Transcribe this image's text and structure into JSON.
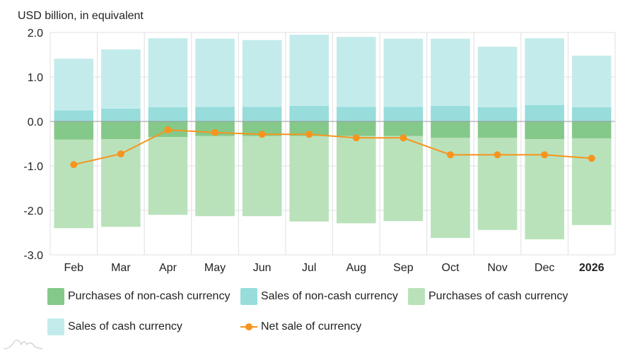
{
  "chart_data": {
    "type": "bar",
    "stacked": true,
    "ylabel": "USD billion, in equivalent",
    "ylim": [
      -3.0,
      2.0
    ],
    "yticks": [
      "2.0",
      "1.0",
      "0.0",
      "-1.0",
      "-2.0",
      "-3.0"
    ],
    "grid": true,
    "legend_placement": "bottom",
    "categories": [
      "Feb",
      "Mar",
      "Apr",
      "May",
      "Jun",
      "Jul",
      "Aug",
      "Sep",
      "Oct",
      "Nov",
      "Dec",
      "2026"
    ],
    "bold_categories": [
      "2026"
    ],
    "series": [
      {
        "name": "Purchases of non-cash currency",
        "color": "#85c98a",
        "values": [
          -0.41,
          -0.4,
          -0.35,
          -0.33,
          -0.33,
          -0.33,
          -0.33,
          -0.33,
          -0.37,
          -0.37,
          -0.4,
          -0.38
        ]
      },
      {
        "name": "Sales of non-cash currency",
        "color": "#98dcdc",
        "values": [
          0.25,
          0.29,
          0.32,
          0.33,
          0.33,
          0.35,
          0.33,
          0.33,
          0.35,
          0.32,
          0.37,
          0.32
        ]
      },
      {
        "name": "Purchases of cash currency",
        "color": "#b9e2bb",
        "values": [
          -1.99,
          -1.97,
          -1.75,
          -1.8,
          -1.8,
          -1.92,
          -1.96,
          -1.91,
          -2.25,
          -2.07,
          -2.25,
          -1.95
        ]
      },
      {
        "name": "Sales of cash currency",
        "color": "#c4ebeb",
        "values": [
          1.16,
          1.33,
          1.55,
          1.53,
          1.5,
          1.6,
          1.57,
          1.53,
          1.51,
          1.36,
          1.5,
          1.16
        ]
      },
      {
        "name": "Net sale of currency",
        "type": "line",
        "color": "#f7941d",
        "values": [
          -0.97,
          -0.73,
          -0.19,
          -0.25,
          -0.29,
          -0.29,
          -0.37,
          -0.37,
          -0.75,
          -0.75,
          -0.75,
          -0.83
        ]
      }
    ]
  }
}
